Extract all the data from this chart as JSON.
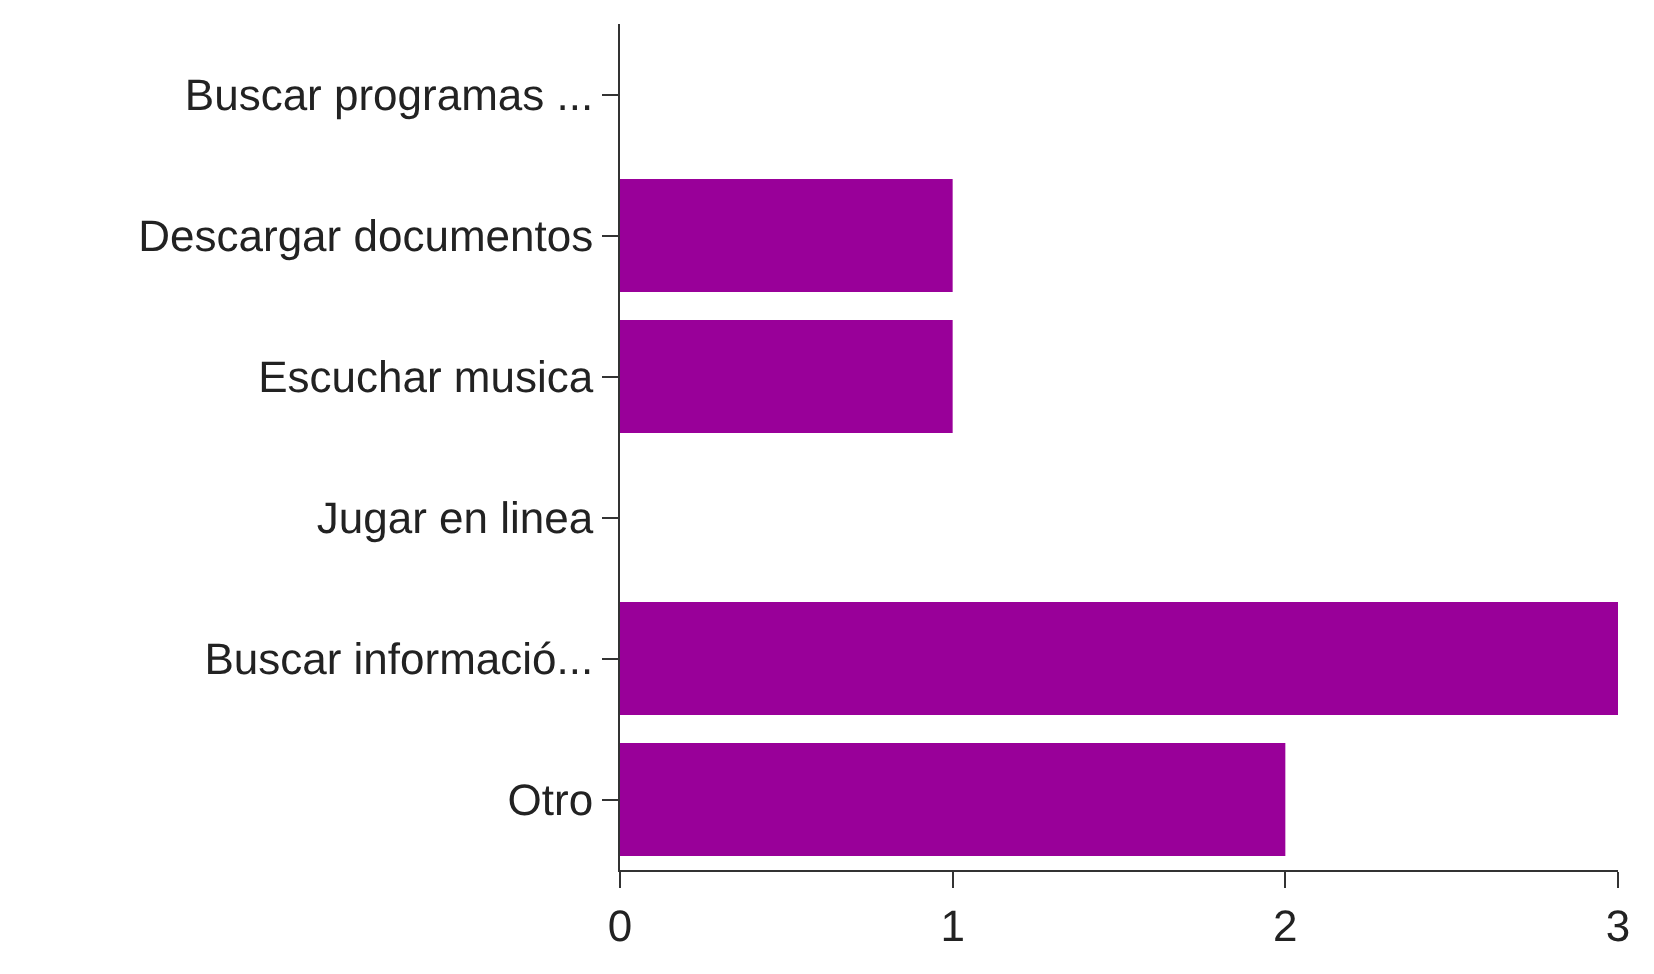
{
  "chart_data": {
    "type": "bar",
    "orientation": "horizontal",
    "categories": [
      "Buscar programas ...",
      "Descargar documentos",
      "Escuchar musica",
      "Jugar en linea",
      "Buscar informació...",
      "Otro"
    ],
    "values": [
      0,
      1,
      1,
      0,
      3,
      2
    ],
    "color": "#990099",
    "xlim": [
      0,
      3
    ],
    "xticks": [
      0,
      1,
      2,
      3
    ]
  }
}
